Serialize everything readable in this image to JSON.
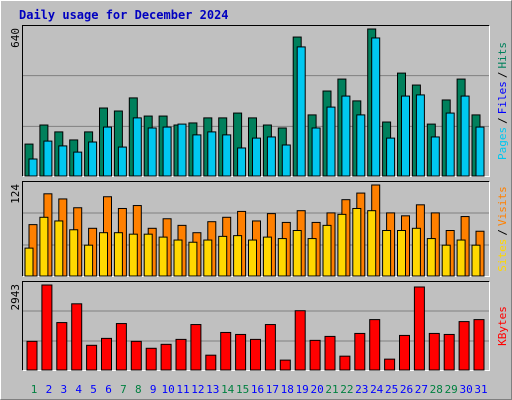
{
  "title": "Daily usage for December 2024",
  "legend_separator": "/",
  "chart_data": [
    {
      "type": "bar",
      "ylim": [
        0,
        640
      ],
      "yticks": [
        640
      ],
      "series": [
        {
          "name": "Hits",
          "color": "#00805C",
          "values": [
            139,
            222,
            192,
            157,
            192,
            296,
            283,
            340,
            261,
            261,
            222,
            231,
            253,
            253,
            274,
            253,
            222,
            209,
            605,
            266,
            370,
            422,
            327,
            640,
            235,
            448,
            396,
            226,
            331,
            422,
            266
          ]
        },
        {
          "name": "Files",
          "color": "#0000FF",
          "values": [
            null,
            null,
            null,
            null,
            null,
            null,
            null,
            null,
            null,
            null,
            null,
            null,
            null,
            null,
            null,
            null,
            null,
            null,
            null,
            null,
            null,
            null,
            null,
            null,
            null,
            null,
            null,
            null,
            null,
            null,
            null
          ]
        },
        {
          "name": "Pages",
          "color": "#00C8F0",
          "values": [
            74,
            152,
            131,
            104,
            148,
            213,
            126,
            253,
            209,
            213,
            226,
            179,
            192,
            179,
            122,
            165,
            170,
            135,
            562,
            209,
            300,
            348,
            266,
            601,
            165,
            348,
            353,
            170,
            274,
            348,
            213
          ]
        }
      ]
    },
    {
      "type": "bar",
      "ylim": [
        0,
        124
      ],
      "yticks": [
        124
      ],
      "series": [
        {
          "name": "Visits",
          "color": "#FF8000",
          "values": [
            70,
            112,
            105,
            93,
            65,
            108,
            92,
            96,
            65,
            78,
            69,
            59,
            74,
            80,
            88,
            75,
            85,
            73,
            89,
            73,
            86,
            104,
            113,
            124,
            86,
            82,
            97,
            86,
            62,
            81,
            61
          ]
        },
        {
          "name": "Sites",
          "color": "#FFD800",
          "values": [
            38,
            80,
            75,
            63,
            42,
            59,
            59,
            57,
            57,
            53,
            49,
            46,
            49,
            54,
            55,
            49,
            53,
            51,
            62,
            51,
            69,
            84,
            92,
            89,
            62,
            62,
            65,
            51,
            42,
            49,
            42
          ]
        }
      ]
    },
    {
      "type": "bar",
      "ylim": [
        0,
        2943
      ],
      "yticks": [
        2943
      ],
      "series": [
        {
          "name": "KBytes",
          "color": "#FF0000",
          "values": [
            992,
            2943,
            1642,
            2292,
            855,
            1095,
            1608,
            992,
            752,
            889,
            1060,
            1574,
            513,
            1300,
            1231,
            1060,
            1574,
            342,
            2053,
            1026,
            1163,
            479,
            1266,
            1745,
            376,
            1197,
            2874,
            1266,
            1231,
            1676,
            1745
          ]
        }
      ],
      "categories": [
        "1",
        "2",
        "3",
        "4",
        "5",
        "6",
        "7",
        "8",
        "9",
        "10",
        "11",
        "12",
        "13",
        "14",
        "15",
        "16",
        "17",
        "18",
        "19",
        "20",
        "21",
        "22",
        "23",
        "24",
        "25",
        "26",
        "27",
        "28",
        "29",
        "30",
        "31"
      ],
      "category_colors": [
        "#008040",
        "#0000FF",
        "#0000FF",
        "#0000FF",
        "#0000FF",
        "#0000FF",
        "#008040",
        "#008040",
        "#0000FF",
        "#0000FF",
        "#0000FF",
        "#0000FF",
        "#0000FF",
        "#008040",
        "#008040",
        "#0000FF",
        "#0000FF",
        "#0000FF",
        "#0000FF",
        "#0000FF",
        "#008040",
        "#008040",
        "#0000FF",
        "#0000FF",
        "#0000FF",
        "#0000FF",
        "#0000FF",
        "#008040",
        "#008040",
        "#0000FF",
        "#0000FF"
      ]
    }
  ]
}
